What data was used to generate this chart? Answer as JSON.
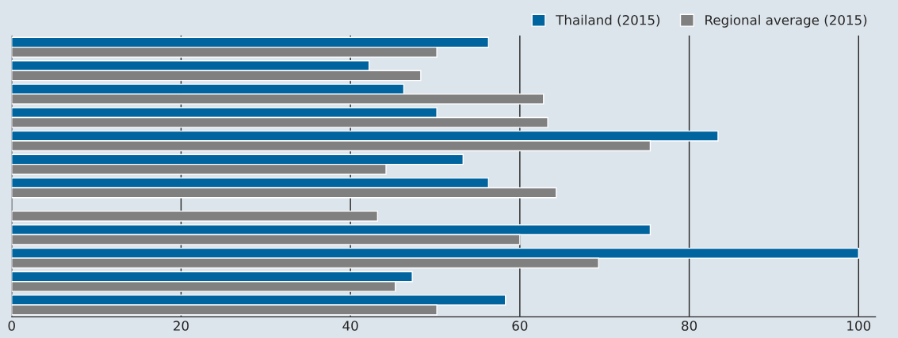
{
  "chart_data": {
    "type": "bar",
    "orientation": "horizontal",
    "categories": [
      null,
      null,
      null,
      null,
      null,
      null,
      null,
      null,
      null,
      null,
      null,
      null
    ],
    "series": [
      {
        "name": "Thailand (2015)",
        "color": "#00649f",
        "values": [
          56.3,
          42.2,
          46.3,
          50.2,
          83.4,
          53.3,
          56.3,
          null,
          75.4,
          100,
          47.3,
          58.3
        ]
      },
      {
        "name": "Regional average (2015)",
        "color": "#808080",
        "values": [
          50.2,
          48.3,
          62.8,
          63.3,
          75.4,
          44.2,
          64.3,
          43.2,
          60,
          69.3,
          45.3,
          50.2
        ]
      }
    ],
    "xlim": [
      0,
      102
    ],
    "xticks": [
      0,
      20,
      40,
      60,
      80,
      100
    ],
    "grid": "x",
    "legend": "top right"
  }
}
